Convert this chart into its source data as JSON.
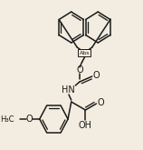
{
  "background_color": "#f2ede0",
  "line_color": "#1a1a1a",
  "line_width": 1.1,
  "figsize": [
    1.58,
    1.65
  ],
  "dpi": 100,
  "abs_label": "Abs",
  "o_label": "O",
  "hn_label": "HN",
  "oh_label": "OH",
  "meo_label": "O",
  "ch3_label": "H₃C"
}
